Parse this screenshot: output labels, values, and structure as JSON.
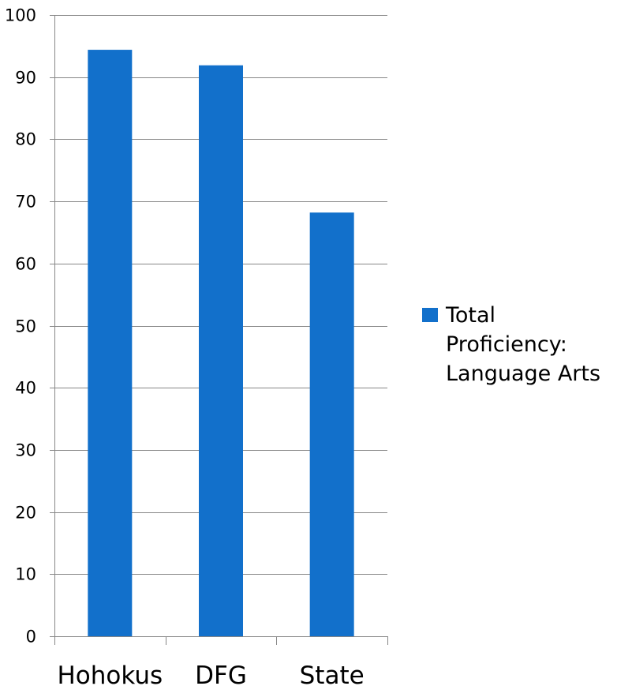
{
  "chart_data": {
    "type": "bar",
    "title": "",
    "xlabel": "",
    "ylabel": "",
    "categories": [
      "Hohokus",
      "DFG",
      "State"
    ],
    "series": [
      {
        "name": "Total Proficiency: Language Arts",
        "values": [
          94.4,
          91.9,
          68.2
        ],
        "color": "#1270CB"
      }
    ],
    "ylim": [
      0,
      100
    ],
    "yticks": [
      0,
      10,
      20,
      30,
      40,
      50,
      60,
      70,
      80,
      90,
      100
    ],
    "ytick_labels": [
      "0",
      "10",
      "20",
      "30",
      "40",
      "50",
      "60",
      "70",
      "80",
      "90",
      "100"
    ],
    "grid": true,
    "grid_color": "#878787",
    "legend": {
      "position": "right",
      "lines": [
        "Total",
        "Proficiency:",
        "Language Arts"
      ]
    }
  }
}
